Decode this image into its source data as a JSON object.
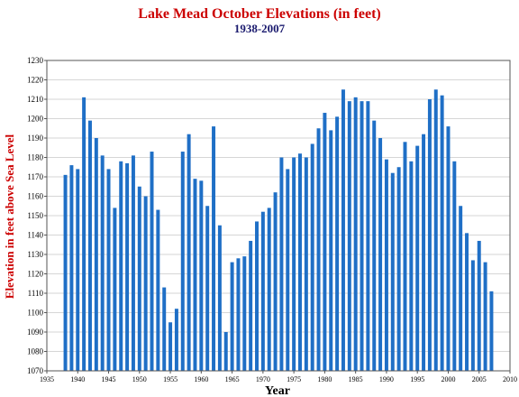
{
  "chart_data": {
    "type": "bar",
    "title": "Lake Mead October Elevations (in feet)",
    "subtitle": "1938-2007",
    "xlabel": "Year",
    "ylabel": "Elevation in feet above Sea Level",
    "xlim": [
      1935,
      2010
    ],
    "ylim": [
      1070,
      1230
    ],
    "x_ticks": [
      1935,
      1940,
      1945,
      1950,
      1955,
      1960,
      1965,
      1970,
      1975,
      1980,
      1985,
      1990,
      1995,
      2000,
      2005,
      2010
    ],
    "y_ticks": [
      1070,
      1080,
      1090,
      1100,
      1110,
      1120,
      1130,
      1140,
      1150,
      1160,
      1170,
      1180,
      1190,
      1200,
      1210,
      1220,
      1230
    ],
    "grid": true,
    "bar_color": "#1f6fc6",
    "title_color": "#cc0000",
    "subtitle_color": "#1a1a6e",
    "ylabel_color": "#cc0000",
    "series": [
      {
        "x": [
          1938,
          1939,
          1940,
          1941,
          1942,
          1943,
          1944,
          1945,
          1946,
          1947,
          1948,
          1949,
          1950,
          1951,
          1952,
          1953,
          1954,
          1955,
          1956,
          1957,
          1958,
          1959,
          1960,
          1961,
          1962,
          1963,
          1964,
          1965,
          1966,
          1967,
          1968,
          1969,
          1970,
          1971,
          1972,
          1973,
          1974,
          1975,
          1976,
          1977,
          1978,
          1979,
          1980,
          1981,
          1982,
          1983,
          1984,
          1985,
          1986,
          1987,
          1988,
          1989,
          1990,
          1991,
          1992,
          1993,
          1994,
          1995,
          1996,
          1997,
          1998,
          1999,
          2000,
          2001,
          2002,
          2003,
          2004,
          2005,
          2006,
          2007
        ],
        "values": [
          1171,
          1176,
          1174,
          1211,
          1199,
          1190,
          1181,
          1174,
          1154,
          1178,
          1177,
          1181,
          1165,
          1160,
          1183,
          1153,
          1113,
          1095,
          1102,
          1183,
          1192,
          1169,
          1168,
          1155,
          1196,
          1145,
          1090,
          1126,
          1128,
          1129,
          1137,
          1147,
          1152,
          1154,
          1162,
          1180,
          1174,
          1180,
          1182,
          1180,
          1187,
          1195,
          1203,
          1194,
          1201,
          1215,
          1209,
          1211,
          1209,
          1209,
          1199,
          1190,
          1179,
          1172,
          1175,
          1188,
          1178,
          1186,
          1192,
          1210,
          1215,
          1212,
          1196,
          1178,
          1155,
          1141,
          1127,
          1137,
          1126,
          1111
        ]
      }
    ]
  }
}
